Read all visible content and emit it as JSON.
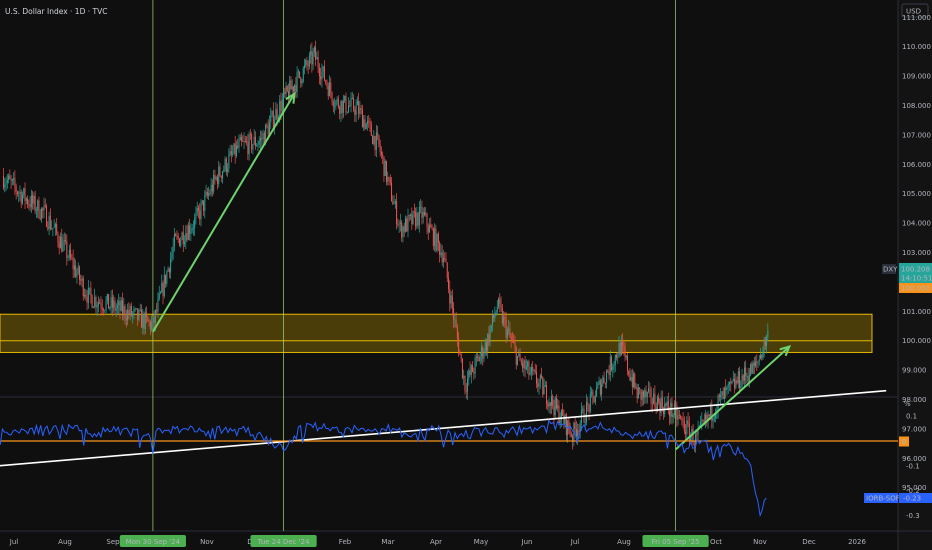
{
  "header": {
    "title": "U.S. Dollar Index · 1D · TVC",
    "currency": "USD",
    "indicator_unit": "%"
  },
  "price_labels": {
    "symbol": "DXY",
    "last": "100.208",
    "countdown": "14:10:51",
    "level": "100.000",
    "indicator_name": "IORB-SOFR",
    "indicator_last": "-0.23"
  },
  "colors": {
    "up": "#26a69a",
    "down": "#ef5350",
    "zone": "#e6b800",
    "arrow": "#6ed36e",
    "trend": "#ffffff",
    "indicator": "#2962ff",
    "zero_line": "#f7931a",
    "vline": "#a6e07a"
  },
  "chart_data": [
    {
      "type": "candlestick",
      "title": "U.S. Dollar Index · 1D · TVC",
      "y_ticks": [
        "111.000",
        "110.000",
        "109.000",
        "108.000",
        "107.000",
        "106.000",
        "105.000",
        "104.000",
        "103.000",
        "102.000",
        "101.000",
        "100.000",
        "99.000",
        "98.000",
        "97.000",
        "96.000",
        "95.000"
      ],
      "ylim": [
        94.8,
        111.3
      ],
      "x_ticks": [
        "Jul",
        "Aug",
        "Sep",
        "Nov",
        "Dec",
        "Feb",
        "Mar",
        "Apr",
        "May",
        "Jun",
        "Jul",
        "Aug",
        "Oct",
        "Nov",
        "Dec",
        "2026"
      ],
      "markers": [
        "Mon 30 Sep '24",
        "Tue 24 Dec '24",
        "Fri 05 Sep '25"
      ],
      "close_anchors": [
        [
          "2024-06-24",
          105.6
        ],
        [
          "2024-07-08",
          104.9
        ],
        [
          "2024-07-22",
          104.3
        ],
        [
          "2024-08-05",
          103.0
        ],
        [
          "2024-08-19",
          101.5
        ],
        [
          "2024-09-02",
          101.2
        ],
        [
          "2024-09-16",
          100.9
        ],
        [
          "2024-09-30",
          100.5
        ],
        [
          "2024-10-14",
          103.3
        ],
        [
          "2024-10-28",
          104.1
        ],
        [
          "2024-11-11",
          105.6
        ],
        [
          "2024-11-25",
          106.6
        ],
        [
          "2024-12-09",
          106.8
        ],
        [
          "2024-12-24",
          108.2
        ],
        [
          "2025-01-13",
          109.7
        ],
        [
          "2025-01-27",
          108.1
        ],
        [
          "2025-02-10",
          107.9
        ],
        [
          "2025-02-24",
          106.6
        ],
        [
          "2025-03-10",
          103.8
        ],
        [
          "2025-03-24",
          104.3
        ],
        [
          "2025-04-07",
          102.9
        ],
        [
          "2025-04-21",
          98.5
        ],
        [
          "2025-05-05",
          99.9
        ],
        [
          "2025-05-12",
          101.2
        ],
        [
          "2025-05-26",
          99.3
        ],
        [
          "2025-06-09",
          98.5
        ],
        [
          "2025-06-30",
          96.8
        ],
        [
          "2025-07-14",
          98.1
        ],
        [
          "2025-07-31",
          99.8
        ],
        [
          "2025-08-11",
          98.2
        ],
        [
          "2025-08-25",
          97.9
        ],
        [
          "2025-09-05",
          97.5
        ],
        [
          "2025-09-18",
          96.6
        ],
        [
          "2025-10-01",
          97.8
        ],
        [
          "2025-10-15",
          98.6
        ],
        [
          "2025-10-27",
          99.1
        ],
        [
          "2025-11-04",
          100.2
        ]
      ],
      "zone": [
        99.6,
        100.9
      ],
      "level_line": 100.0,
      "trendline": [
        [
          "2024-05-20",
          95.6
        ],
        [
          "2026-01-20",
          98.3
        ]
      ],
      "arrows": [
        [
          [
            "2024-09-30",
            100.3
          ],
          [
            "2024-12-31",
            108.4
          ]
        ],
        [
          [
            "2025-09-05",
            96.3
          ],
          [
            "2025-11-18",
            99.8
          ]
        ]
      ]
    },
    {
      "type": "line",
      "title": "",
      "series_name": "IORB-SOFR",
      "y_ticks": [
        "0.1",
        "0",
        "-0.1",
        "-0.2",
        "-0.3"
      ],
      "ylim": [
        -0.35,
        0.15
      ],
      "zero_line": 0,
      "points": [
        [
          "2024-06-20",
          0.03
        ],
        [
          "2024-07-01",
          0.04
        ],
        [
          "2024-07-12",
          0.05
        ],
        [
          "2024-07-26",
          0.04
        ],
        [
          "2024-08-09",
          0.05
        ],
        [
          "2024-08-23",
          0.03
        ],
        [
          "2024-09-06",
          0.04
        ],
        [
          "2024-09-27",
          0.03
        ],
        [
          "2024-09-30",
          -0.05
        ],
        [
          "2024-10-02",
          0.04
        ],
        [
          "2024-10-20",
          0.05
        ],
        [
          "2024-11-05",
          0.04
        ],
        [
          "2024-11-25",
          0.05
        ],
        [
          "2024-12-10",
          0.02
        ],
        [
          "2024-12-24",
          -0.04
        ],
        [
          "2024-12-31",
          0.02
        ],
        [
          "2025-01-08",
          0.07
        ],
        [
          "2025-01-22",
          0.05
        ],
        [
          "2025-02-05",
          0.05
        ],
        [
          "2025-02-20",
          0.04
        ],
        [
          "2025-03-05",
          0.05
        ],
        [
          "2025-03-20",
          0.03
        ],
        [
          "2025-04-01",
          0.05
        ],
        [
          "2025-04-16",
          0.01
        ],
        [
          "2025-04-30",
          0.05
        ],
        [
          "2025-05-15",
          0.03
        ],
        [
          "2025-06-01",
          0.05
        ],
        [
          "2025-06-16",
          0.07
        ],
        [
          "2025-06-30",
          0.04
        ],
        [
          "2025-07-15",
          0.06
        ],
        [
          "2025-07-30",
          0.04
        ],
        [
          "2025-08-14",
          0.02
        ],
        [
          "2025-08-28",
          0.03
        ],
        [
          "2025-09-05",
          0.0
        ],
        [
          "2025-09-12",
          -0.03
        ],
        [
          "2025-09-22",
          0.0
        ],
        [
          "2025-10-01",
          -0.04
        ],
        [
          "2025-10-08",
          -0.02
        ],
        [
          "2025-10-17",
          -0.05
        ],
        [
          "2025-10-24",
          -0.1
        ],
        [
          "2025-10-30",
          -0.3
        ],
        [
          "2025-11-03",
          -0.23
        ]
      ]
    }
  ]
}
